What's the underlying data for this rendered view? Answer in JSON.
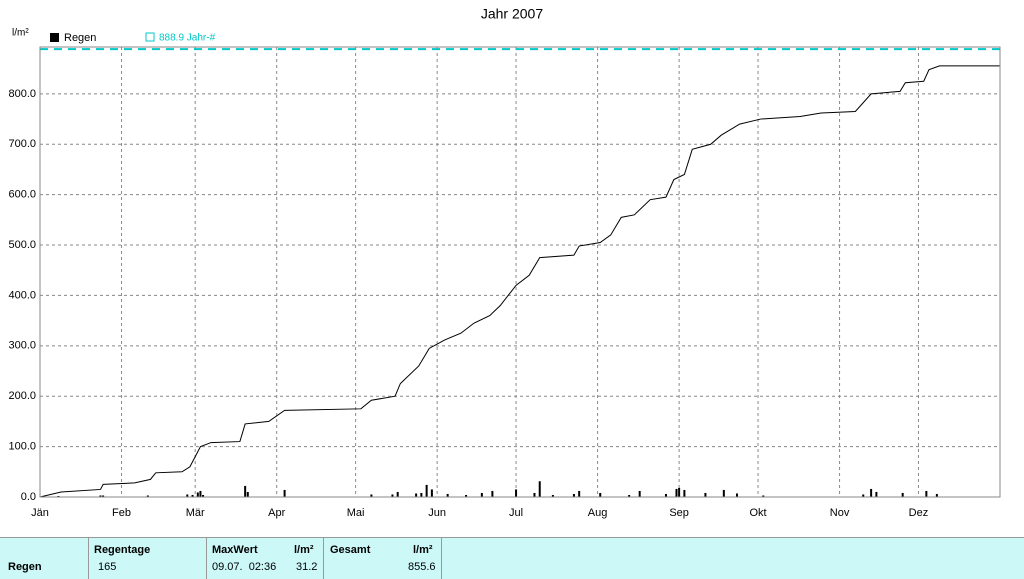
{
  "chart_data": {
    "type": "rain-year",
    "title": "Jahr 2007",
    "y_label": "l/m²",
    "xlim": [
      0,
      365
    ],
    "xticks": [
      {
        "value": 0,
        "label": "Jän"
      },
      {
        "value": 31,
        "label": "Feb"
      },
      {
        "value": 59,
        "label": "Mär"
      },
      {
        "value": 90,
        "label": "Apr"
      },
      {
        "value": 120,
        "label": "Mai"
      },
      {
        "value": 151,
        "label": "Jun"
      },
      {
        "value": 181,
        "label": "Jul"
      },
      {
        "value": 212,
        "label": "Aug"
      },
      {
        "value": 243,
        "label": "Sep"
      },
      {
        "value": 273,
        "label": "Okt"
      },
      {
        "value": 304,
        "label": "Nov"
      },
      {
        "value": 334,
        "label": "Dez"
      }
    ],
    "ylim": [
      0,
      893
    ],
    "yticks": [
      {
        "value": 0,
        "label": "0.0"
      },
      {
        "value": 100,
        "label": "100.0"
      },
      {
        "value": 200,
        "label": "200.0"
      },
      {
        "value": 300,
        "label": "300.0"
      },
      {
        "value": 400,
        "label": "400.0"
      },
      {
        "value": 500,
        "label": "500.0"
      },
      {
        "value": 600,
        "label": "600.0"
      },
      {
        "value": 700,
        "label": "700.0"
      },
      {
        "value": 800,
        "label": "800.0"
      }
    ],
    "grid": true,
    "bars": {
      "name": "Regen",
      "color": "#000000",
      "x": [
        7,
        23,
        24,
        41,
        56,
        58,
        60,
        61,
        62,
        78,
        79,
        93,
        126,
        134,
        136,
        143,
        145,
        147,
        149,
        155,
        162,
        168,
        172,
        181,
        188,
        190,
        195,
        203,
        205,
        213,
        224,
        228,
        238,
        242,
        243,
        245,
        253,
        260,
        265,
        275,
        313,
        316,
        318,
        328,
        337,
        341
      ],
      "values": [
        2,
        3,
        3,
        3,
        5,
        4,
        9,
        12,
        4,
        22,
        10,
        14,
        5,
        5,
        10,
        7,
        8,
        24,
        15,
        6,
        4,
        8,
        12,
        15,
        8,
        31.2,
        4,
        6,
        12,
        8,
        4,
        12,
        6,
        16,
        18,
        14,
        8,
        14,
        7,
        3,
        5,
        16,
        10,
        8,
        12,
        6
      ]
    },
    "cumulative": {
      "color": "#000000",
      "x": [
        0,
        8,
        23,
        24,
        36,
        42,
        44,
        54,
        57,
        61,
        65,
        76,
        78,
        87,
        93,
        122,
        126,
        135,
        137,
        144,
        148,
        154,
        160,
        165,
        171,
        175,
        181,
        186,
        190,
        203,
        205,
        213,
        217,
        221,
        226,
        232,
        238,
        241,
        245,
        248,
        255,
        259,
        266,
        274,
        289,
        297,
        310,
        316,
        327,
        329,
        336,
        338,
        342,
        365
      ],
      "values": [
        0,
        10,
        15,
        25,
        28,
        35,
        48,
        50,
        60,
        100,
        108,
        110,
        145,
        150,
        172,
        175,
        192,
        200,
        225,
        260,
        295,
        312,
        325,
        345,
        360,
        380,
        420,
        440,
        475,
        480,
        498,
        505,
        520,
        555,
        560,
        590,
        595,
        630,
        640,
        690,
        700,
        718,
        740,
        750,
        755,
        762,
        765,
        800,
        805,
        822,
        825,
        848,
        855.6,
        855.6
      ]
    },
    "reference": {
      "name": "888.9 Jahr-#",
      "value": 888.9,
      "color": "#00c8c8"
    }
  },
  "table": {
    "headers": [
      "Regentage",
      "MaxWert",
      "l/m²",
      "Gesamt",
      "l/m²"
    ],
    "row_label": "Regen",
    "regentage": 165,
    "maxwert_time": "09.07.  02:36",
    "maxwert": 31.2,
    "gesamt": 855.6
  }
}
